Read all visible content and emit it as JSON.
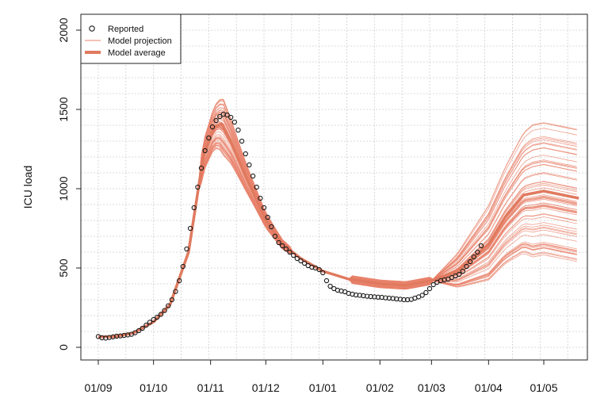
{
  "chart_data": {
    "type": "line",
    "ylabel": "ICU load",
    "xlabel": "",
    "title": "",
    "ylim": [
      0,
      2000
    ],
    "x_range": [
      "2020-09-01",
      "2021-05-20"
    ],
    "x_ticks": [
      {
        "date": "2020-09-01",
        "label": "01/09"
      },
      {
        "date": "2020-10-01",
        "label": "01/10"
      },
      {
        "date": "2020-11-01",
        "label": "01/11"
      },
      {
        "date": "2020-12-01",
        "label": "01/12"
      },
      {
        "date": "2021-01-01",
        "label": "01/01"
      },
      {
        "date": "2021-02-01",
        "label": "01/02"
      },
      {
        "date": "2021-03-01",
        "label": "01/03"
      },
      {
        "date": "2021-04-01",
        "label": "01/04"
      },
      {
        "date": "2021-05-01",
        "label": "01/05"
      }
    ],
    "y_ticks": [
      0,
      500,
      1000,
      1500,
      2000
    ],
    "grid": true,
    "legend_position": "top-left",
    "legend": [
      {
        "label": "Reported",
        "style": "open-circle"
      },
      {
        "label": "Model projection",
        "style": "thin-line"
      },
      {
        "label": "Model average",
        "style": "thick-line"
      }
    ],
    "colors": {
      "reported": "#1a1a1a",
      "projection": "#e8806a",
      "average": "#e07a5f",
      "grid": "#cfcfcf"
    },
    "projection_count": 60,
    "series": [
      {
        "name": "Reported",
        "points": [
          [
            "2020-09-01",
            68
          ],
          [
            "2020-09-03",
            60
          ],
          [
            "2020-09-05",
            58
          ],
          [
            "2020-09-07",
            62
          ],
          [
            "2020-09-09",
            66
          ],
          [
            "2020-09-11",
            70
          ],
          [
            "2020-09-13",
            72
          ],
          [
            "2020-09-15",
            75
          ],
          [
            "2020-09-17",
            78
          ],
          [
            "2020-09-19",
            82
          ],
          [
            "2020-09-21",
            92
          ],
          [
            "2020-09-23",
            105
          ],
          [
            "2020-09-25",
            120
          ],
          [
            "2020-09-27",
            140
          ],
          [
            "2020-09-29",
            158
          ],
          [
            "2020-10-01",
            175
          ],
          [
            "2020-10-03",
            190
          ],
          [
            "2020-10-05",
            208
          ],
          [
            "2020-10-07",
            232
          ],
          [
            "2020-10-09",
            262
          ],
          [
            "2020-10-11",
            300
          ],
          [
            "2020-10-13",
            352
          ],
          [
            "2020-10-15",
            420
          ],
          [
            "2020-10-17",
            510
          ],
          [
            "2020-10-19",
            620
          ],
          [
            "2020-10-21",
            750
          ],
          [
            "2020-10-23",
            880
          ],
          [
            "2020-10-25",
            1010
          ],
          [
            "2020-10-27",
            1130
          ],
          [
            "2020-10-29",
            1240
          ],
          [
            "2020-10-31",
            1320
          ],
          [
            "2020-11-02",
            1390
          ],
          [
            "2020-11-04",
            1430
          ],
          [
            "2020-11-06",
            1455
          ],
          [
            "2020-11-08",
            1470
          ],
          [
            "2020-11-10",
            1465
          ],
          [
            "2020-11-12",
            1450
          ],
          [
            "2020-11-14",
            1420
          ],
          [
            "2020-11-16",
            1370
          ],
          [
            "2020-11-18",
            1300
          ],
          [
            "2020-11-20",
            1220
          ],
          [
            "2020-11-22",
            1150
          ],
          [
            "2020-11-24",
            1080
          ],
          [
            "2020-11-26",
            1010
          ],
          [
            "2020-11-28",
            940
          ],
          [
            "2020-11-30",
            880
          ],
          [
            "2020-12-02",
            820
          ],
          [
            "2020-12-04",
            760
          ],
          [
            "2020-12-06",
            700
          ],
          [
            "2020-12-08",
            660
          ],
          [
            "2020-12-10",
            640
          ],
          [
            "2020-12-12",
            620
          ],
          [
            "2020-12-14",
            600
          ],
          [
            "2020-12-16",
            580
          ],
          [
            "2020-12-18",
            560
          ],
          [
            "2020-12-20",
            545
          ],
          [
            "2020-12-22",
            530
          ],
          [
            "2020-12-24",
            515
          ],
          [
            "2020-12-26",
            505
          ],
          [
            "2020-12-28",
            500
          ],
          [
            "2020-12-30",
            490
          ],
          [
            "2021-01-01",
            470
          ],
          [
            "2021-01-03",
            420
          ],
          [
            "2021-01-05",
            385
          ],
          [
            "2021-01-07",
            370
          ],
          [
            "2021-01-09",
            360
          ],
          [
            "2021-01-11",
            355
          ],
          [
            "2021-01-13",
            350
          ],
          [
            "2021-01-15",
            340
          ],
          [
            "2021-01-17",
            335
          ],
          [
            "2021-01-19",
            330
          ],
          [
            "2021-01-21",
            328
          ],
          [
            "2021-01-23",
            325
          ],
          [
            "2021-01-25",
            322
          ],
          [
            "2021-01-27",
            320
          ],
          [
            "2021-01-29",
            318
          ],
          [
            "2021-01-31",
            316
          ],
          [
            "2021-02-02",
            315
          ],
          [
            "2021-02-04",
            312
          ],
          [
            "2021-02-06",
            310
          ],
          [
            "2021-02-08",
            308
          ],
          [
            "2021-02-10",
            305
          ],
          [
            "2021-02-12",
            303
          ],
          [
            "2021-02-14",
            300
          ],
          [
            "2021-02-16",
            300
          ],
          [
            "2021-02-18",
            302
          ],
          [
            "2021-02-20",
            310
          ],
          [
            "2021-02-22",
            318
          ],
          [
            "2021-02-24",
            328
          ],
          [
            "2021-02-26",
            345
          ],
          [
            "2021-02-28",
            370
          ],
          [
            "2021-03-02",
            395
          ],
          [
            "2021-03-04",
            410
          ],
          [
            "2021-03-06",
            420
          ],
          [
            "2021-03-08",
            425
          ],
          [
            "2021-03-10",
            430
          ],
          [
            "2021-03-12",
            440
          ],
          [
            "2021-03-14",
            450
          ],
          [
            "2021-03-16",
            460
          ],
          [
            "2021-03-18",
            480
          ],
          [
            "2021-03-20",
            510
          ],
          [
            "2021-03-22",
            540
          ],
          [
            "2021-03-24",
            570
          ],
          [
            "2021-03-26",
            600
          ],
          [
            "2021-03-28",
            640
          ]
        ]
      },
      {
        "name": "Model average",
        "points": [
          [
            "2020-09-01",
            65
          ],
          [
            "2020-09-10",
            68
          ],
          [
            "2020-09-20",
            90
          ],
          [
            "2020-10-01",
            160
          ],
          [
            "2020-10-10",
            270
          ],
          [
            "2020-10-20",
            600
          ],
          [
            "2020-10-28",
            1200
          ],
          [
            "2020-11-03",
            1390
          ],
          [
            "2020-11-07",
            1410
          ],
          [
            "2020-11-12",
            1300
          ],
          [
            "2020-11-20",
            1080
          ],
          [
            "2020-12-01",
            800
          ],
          [
            "2020-12-10",
            650
          ],
          [
            "2020-12-20",
            560
          ],
          [
            "2021-01-01",
            480
          ],
          [
            "2021-01-15",
            430
          ],
          [
            "2021-02-01",
            400
          ],
          [
            "2021-02-15",
            390
          ],
          [
            "2021-03-01",
            420
          ],
          [
            "2021-03-15",
            480
          ],
          [
            "2021-04-01",
            650
          ],
          [
            "2021-04-10",
            820
          ],
          [
            "2021-04-20",
            960
          ],
          [
            "2021-05-01",
            985
          ],
          [
            "2021-05-20",
            940
          ]
        ]
      }
    ]
  }
}
